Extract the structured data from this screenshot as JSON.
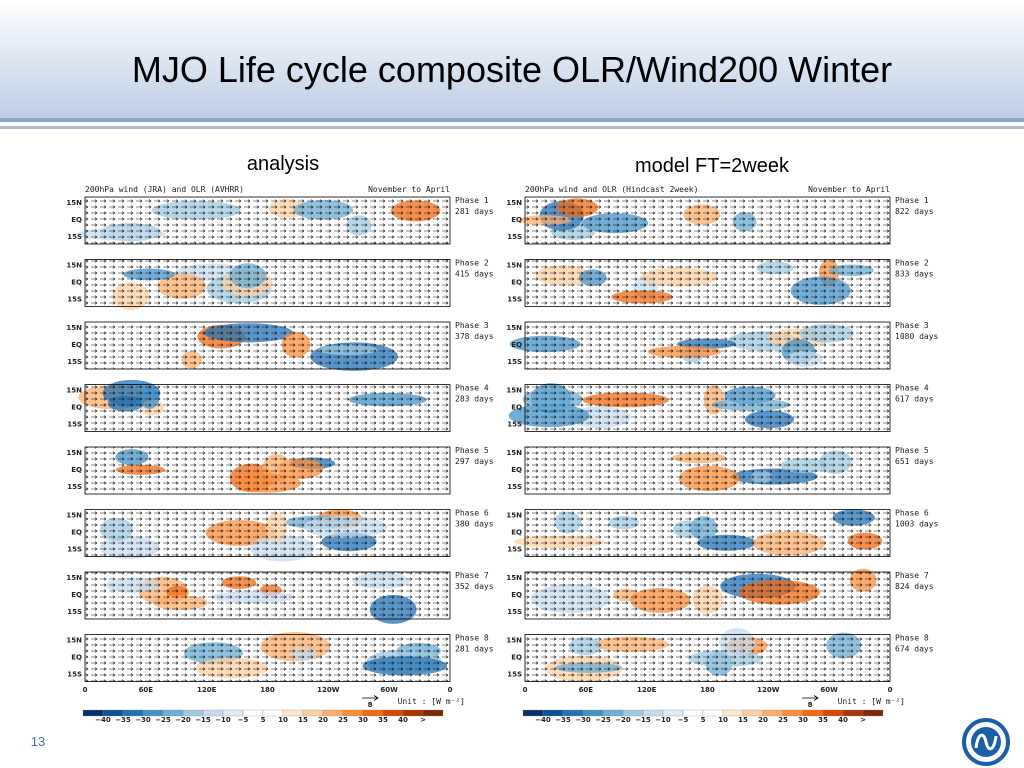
{
  "title": "MJO Life cycle composite  OLR/Wind200  Winter",
  "page_number": "13",
  "panels": [
    {
      "label": "analysis",
      "header_left": "200hPa wind (JRA) and OLR (AVHRR)",
      "header_right": "November to April",
      "phases": [
        {
          "name": "Phase 1",
          "days": "281 days"
        },
        {
          "name": "Phase 2",
          "days": "415 days"
        },
        {
          "name": "Phase 3",
          "days": "378 days"
        },
        {
          "name": "Phase 4",
          "days": "283 days"
        },
        {
          "name": "Phase 5",
          "days": "297 days"
        },
        {
          "name": "Phase 6",
          "days": "380 days"
        },
        {
          "name": "Phase 7",
          "days": "352 days"
        },
        {
          "name": "Phase 8",
          "days": "281 days"
        }
      ],
      "lat_labels": [
        "15N",
        "EQ",
        "15S"
      ],
      "lon_labels": [
        "0",
        "60E",
        "120E",
        "180",
        "120W",
        "60W",
        "0"
      ],
      "vector_label": "8",
      "unit": "Unit : [W m⁻²]",
      "colorbar_labels": [
        "−40",
        "−35",
        "−30",
        "−25",
        "−20",
        "−15",
        "−10",
        "−5",
        "5",
        "10",
        "15",
        "20",
        "25",
        "30",
        "35",
        "40",
        ">"
      ]
    },
    {
      "label": "model FT=2week",
      "header_left": "200hPa wind  and OLR (Hindcast 2week)",
      "header_right": "November to April",
      "phases": [
        {
          "name": "Phase 1",
          "days": "822 days"
        },
        {
          "name": "Phase 2",
          "days": "833 days"
        },
        {
          "name": "Phase 3",
          "days": "1080 days"
        },
        {
          "name": "Phase 4",
          "days": "617 days"
        },
        {
          "name": "Phase 5",
          "days": "651 days"
        },
        {
          "name": "Phase 6",
          "days": "1003 days"
        },
        {
          "name": "Phase 7",
          "days": "824 days"
        },
        {
          "name": "Phase 8",
          "days": "674 days"
        }
      ],
      "lat_labels": [
        "15N",
        "EQ",
        "15S"
      ],
      "lon_labels": [
        "0",
        "60E",
        "120E",
        "180",
        "120W",
        "60W",
        "0"
      ],
      "vector_label": "8",
      "unit": "Unit : [W m⁻²]",
      "colorbar_labels": [
        "−40",
        "−35",
        "−30",
        "−25",
        "−20",
        "−15",
        "−10",
        "−5",
        "5",
        "10",
        "15",
        "20",
        "25",
        "30",
        "35",
        "40",
        ">"
      ]
    }
  ]
}
